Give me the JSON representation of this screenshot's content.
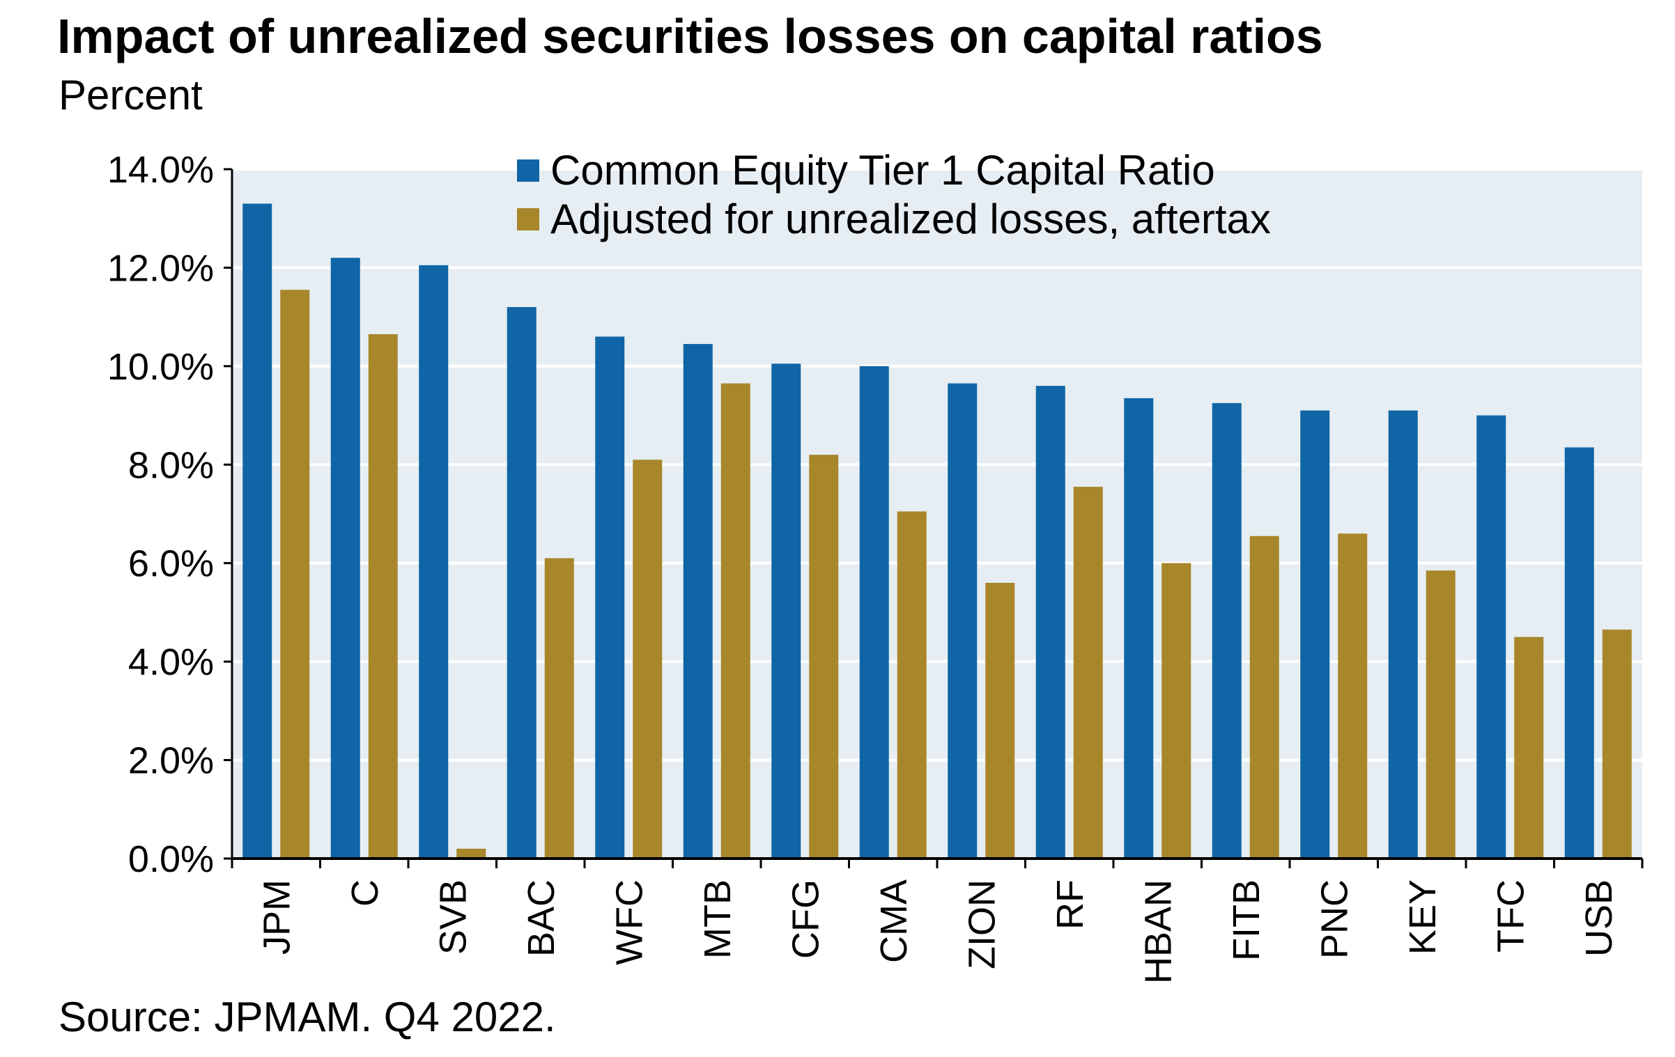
{
  "header": {
    "title": "Impact of unrealized securities losses on capital ratios",
    "subtitle": "Percent"
  },
  "footer": {
    "source": "Source: JPMAM. Q4 2022."
  },
  "colors": {
    "series_cet1": "#0f65a5",
    "series_adjusted": "#a8862a",
    "plot_background": "#e6eef3",
    "gridline": "#ffffff",
    "axis": "#000000"
  },
  "chart_data": {
    "type": "bar",
    "title": "Impact of unrealized securities losses on capital ratios",
    "subtitle": "Percent",
    "xlabel": "",
    "ylabel": "",
    "ylim": [
      0,
      14
    ],
    "yticks": [
      0,
      2,
      4,
      6,
      8,
      10,
      12,
      14
    ],
    "ytick_labels": [
      "0.0%",
      "2.0%",
      "4.0%",
      "6.0%",
      "8.0%",
      "10.0%",
      "12.0%",
      "14.0%"
    ],
    "grid": true,
    "legend_position": "top-right",
    "categories": [
      "JPM",
      "C",
      "SVB",
      "BAC",
      "WFC",
      "MTB",
      "CFG",
      "CMA",
      "ZION",
      "RF",
      "HBAN",
      "FITB",
      "PNC",
      "KEY",
      "TFC",
      "USB"
    ],
    "series": [
      {
        "name": "Common Equity Tier 1 Capital Ratio",
        "color": "#0f65a5",
        "values": [
          13.3,
          12.2,
          12.05,
          11.2,
          10.6,
          10.45,
          10.05,
          10.0,
          9.65,
          9.6,
          9.35,
          9.25,
          9.1,
          9.1,
          9.0,
          8.35
        ]
      },
      {
        "name": "Adjusted for unrealized losses, aftertax",
        "color": "#a8862a",
        "values": [
          11.55,
          10.65,
          0.2,
          6.1,
          8.1,
          9.65,
          8.2,
          7.05,
          5.6,
          7.55,
          6.0,
          6.55,
          6.6,
          5.85,
          4.5,
          4.65
        ]
      }
    ],
    "source": "Source: JPMAM. Q4 2022."
  }
}
